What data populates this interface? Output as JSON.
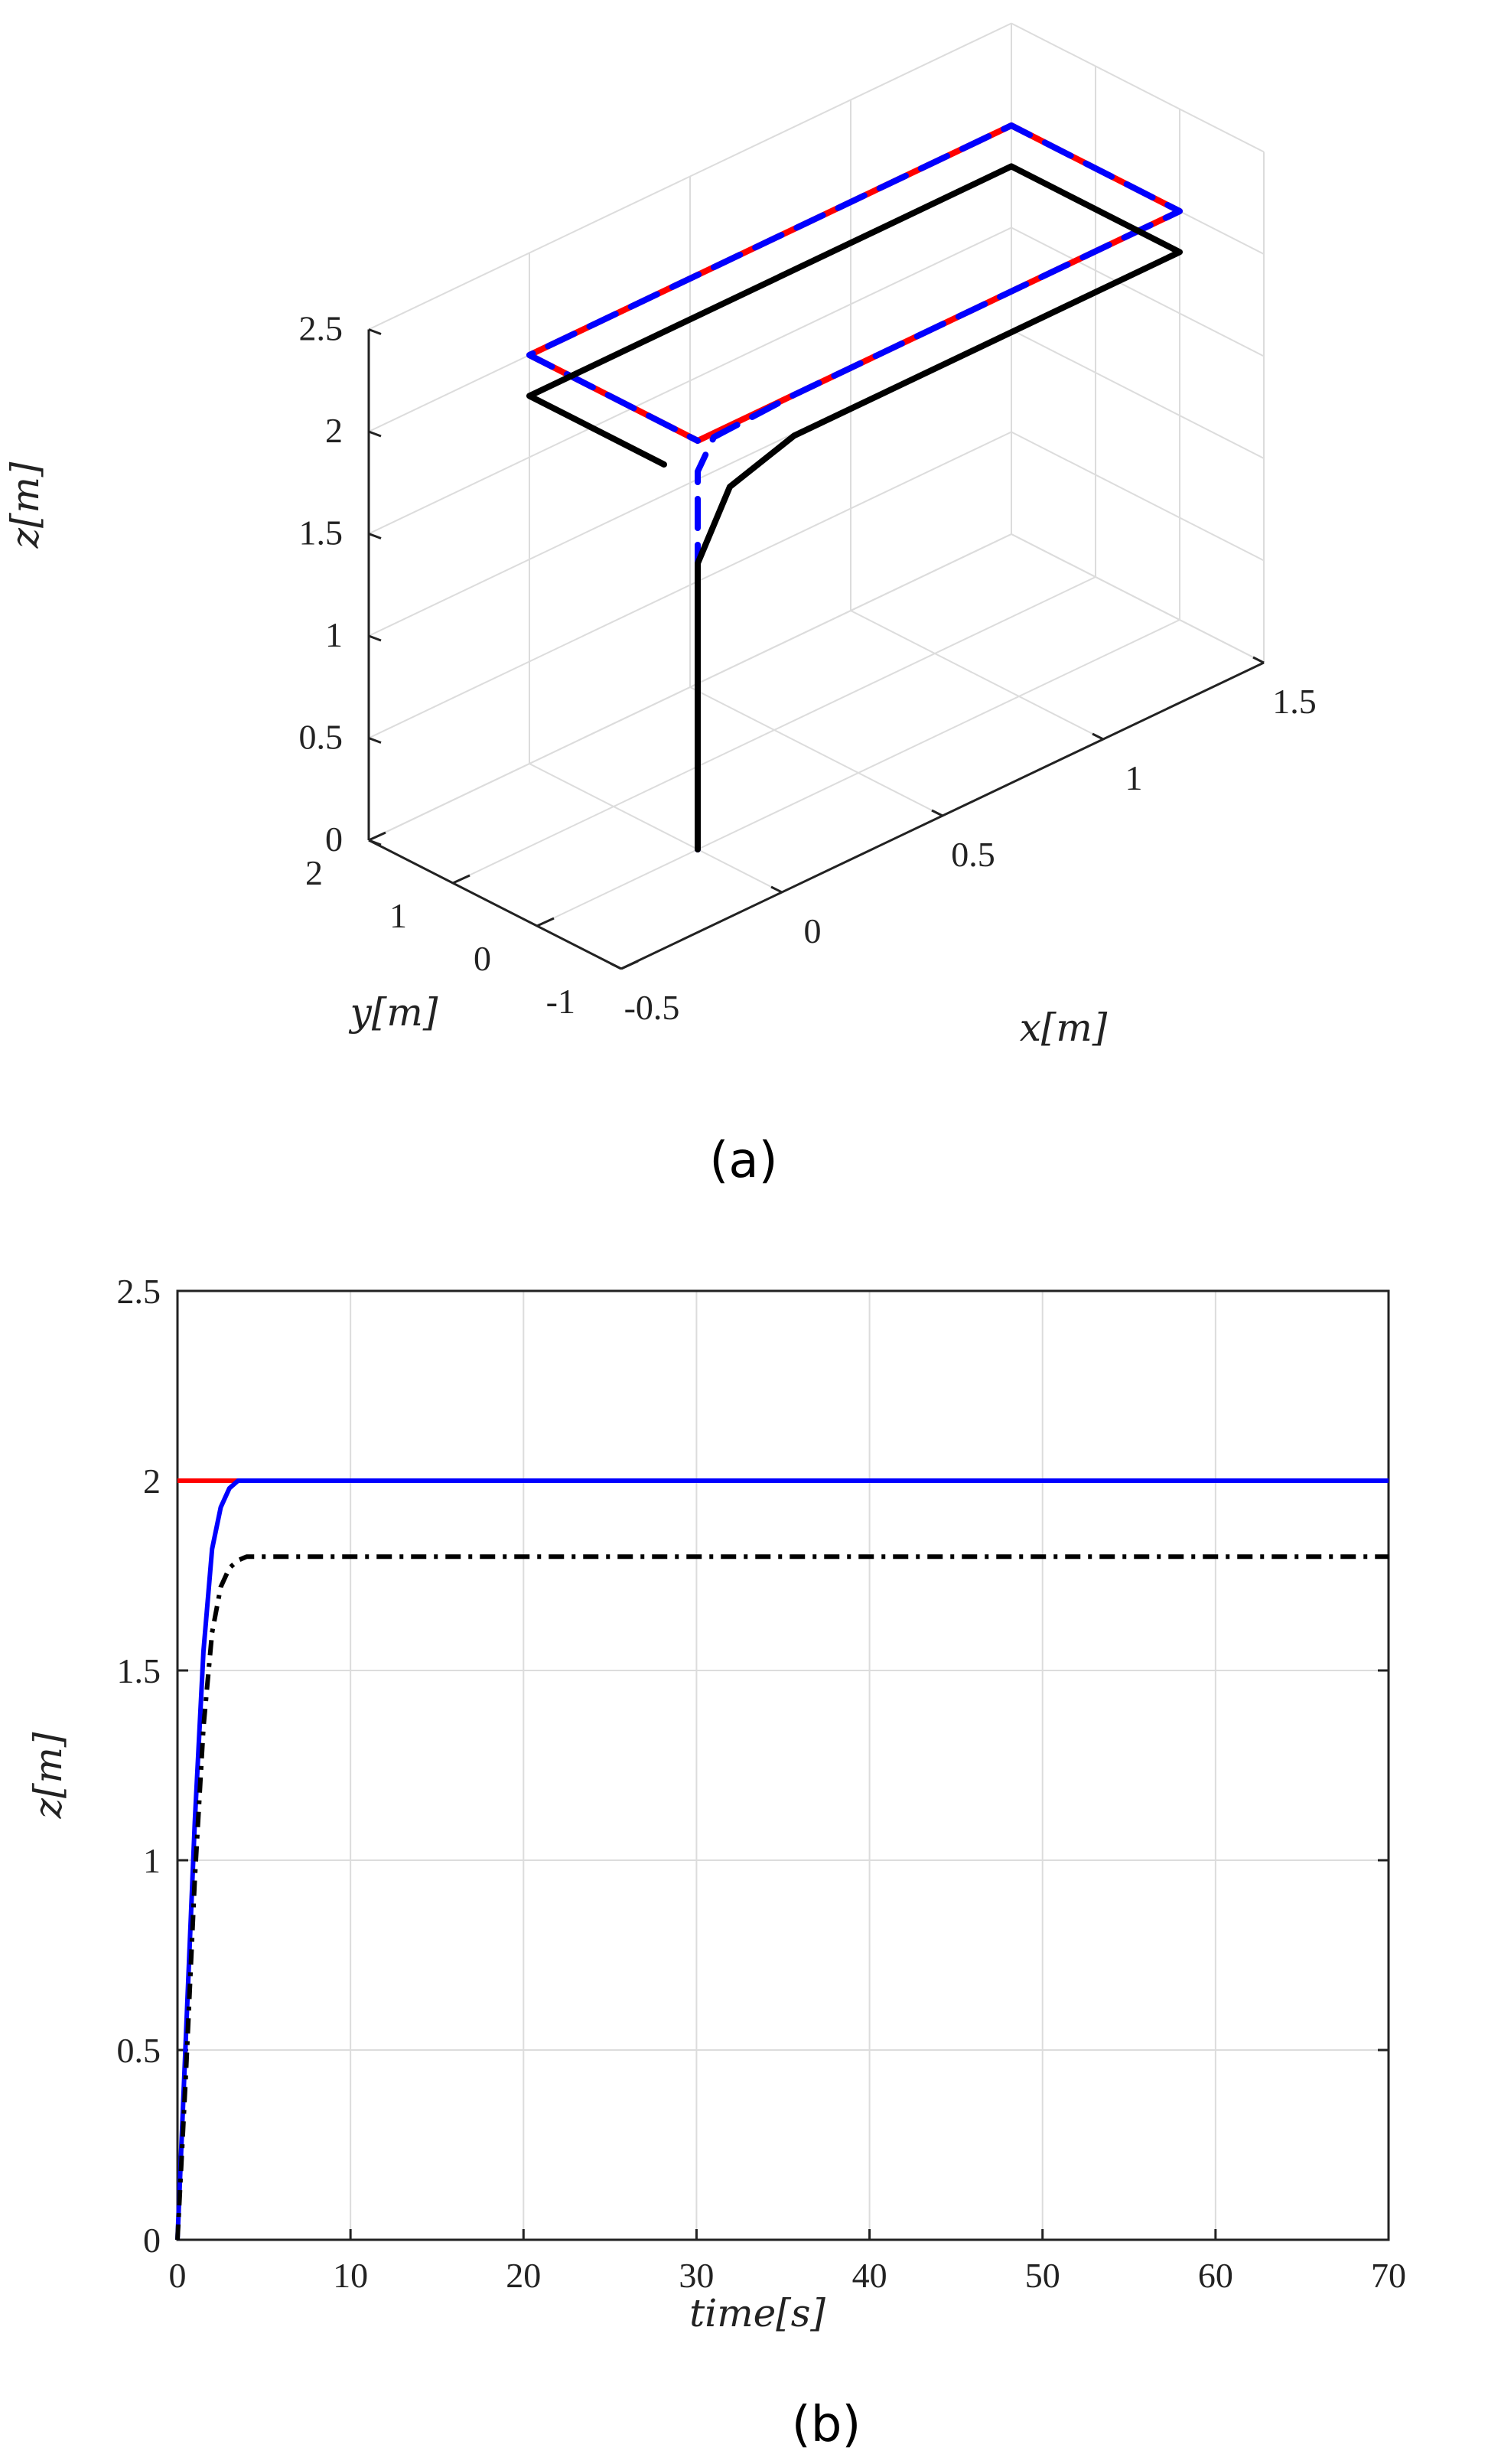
{
  "panels": {
    "a": {
      "label": "(a)"
    },
    "b": {
      "label": "(b)"
    }
  },
  "colors": {
    "reference": "#ff0000",
    "tracked": "#0000ff",
    "alternative": "#000000",
    "grid": "#dcdcdc",
    "axis": "#222222"
  },
  "chart_data": [
    {
      "id": "a",
      "type": "line3d",
      "xlabel": "x[m]",
      "ylabel": "y[m]",
      "zlabel": "z[m]",
      "xlim": [
        -0.5,
        1.5
      ],
      "ylim": [
        -1,
        2
      ],
      "zlim": [
        0,
        2.5
      ],
      "xticks": [
        "-0.5",
        "0",
        "0.5",
        "1",
        "1.5"
      ],
      "yticks": [
        "-1",
        "0",
        "1",
        "2"
      ],
      "zticks": [
        "0",
        "0.5",
        "1",
        "1.5",
        "2",
        "2.5"
      ],
      "grid": true,
      "series": [
        {
          "color": "red",
          "style": "solid",
          "points": [
            [
              0,
              0,
              2
            ],
            [
              1.5,
              0,
              2
            ],
            [
              1.5,
              2,
              2
            ],
            [
              0,
              2,
              2
            ],
            [
              0,
              0,
              2
            ]
          ]
        },
        {
          "color": "blue",
          "style": "dashed",
          "points": [
            [
              0,
              0,
              0
            ],
            [
              0,
              0,
              0.5
            ],
            [
              0,
              0,
              1.0
            ],
            [
              0,
              0,
              1.5
            ],
            [
              0,
              0,
              1.85
            ],
            [
              0.05,
              0,
              1.98
            ],
            [
              0.3,
              0,
              2
            ],
            [
              1.5,
              0,
              2
            ],
            [
              1.5,
              2,
              2
            ],
            [
              0,
              2,
              2
            ],
            [
              0,
              0,
              2
            ]
          ]
        },
        {
          "color": "black",
          "style": "solid",
          "points": [
            [
              0,
              0,
              0
            ],
            [
              0,
              0,
              0.5
            ],
            [
              0,
              0,
              1.0
            ],
            [
              0,
              0,
              1.4
            ],
            [
              0.1,
              0,
              1.7
            ],
            [
              0.3,
              0,
              1.8
            ],
            [
              1.5,
              0,
              1.8
            ],
            [
              1.5,
              2,
              1.8
            ],
            [
              0,
              2,
              1.8
            ],
            [
              0,
              0.4,
              1.8
            ]
          ]
        }
      ]
    },
    {
      "id": "b",
      "type": "line",
      "xlabel": "time[s]",
      "ylabel": "z[m]",
      "xlim": [
        0,
        70
      ],
      "ylim": [
        0,
        2.5
      ],
      "xticks": [
        "0",
        "10",
        "20",
        "30",
        "40",
        "50",
        "60",
        "70"
      ],
      "yticks": [
        "0",
        "0.5",
        "1",
        "1.5",
        "2",
        "2.5"
      ],
      "grid": true,
      "series": [
        {
          "color": "red",
          "style": "solid",
          "x": [
            0,
            4,
            70
          ],
          "y": [
            2,
            2,
            2
          ]
        },
        {
          "color": "blue",
          "style": "solid",
          "x": [
            0,
            0.5,
            1,
            1.5,
            2,
            2.5,
            3,
            3.5,
            4,
            5,
            70
          ],
          "y": [
            0,
            0.55,
            1.1,
            1.55,
            1.82,
            1.93,
            1.98,
            2.0,
            2.0,
            2.0,
            2.0
          ]
        },
        {
          "color": "black",
          "style": "dashdot",
          "x": [
            0,
            0.5,
            1,
            1.5,
            2,
            2.5,
            3,
            3.5,
            4,
            5,
            70
          ],
          "y": [
            0,
            0.45,
            0.95,
            1.35,
            1.6,
            1.72,
            1.77,
            1.79,
            1.8,
            1.8,
            1.8
          ]
        }
      ]
    }
  ]
}
